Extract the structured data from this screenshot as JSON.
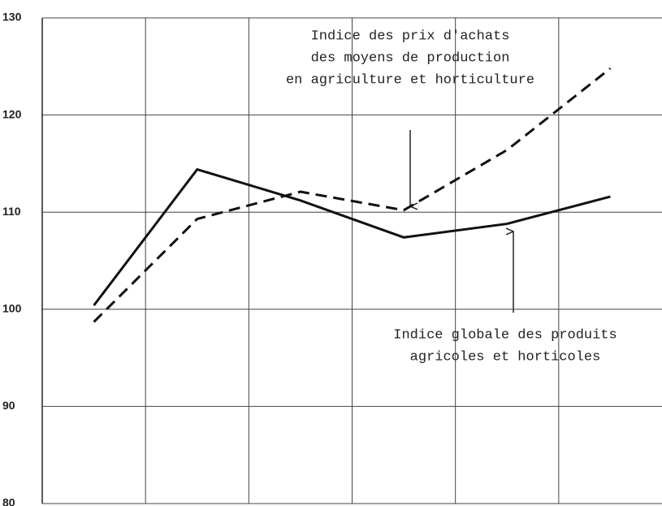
{
  "chart_data": {
    "type": "line",
    "categories": [
      null,
      null,
      null,
      null,
      null,
      null
    ],
    "series": [
      {
        "color": "#111111",
        "linestyle": "solid",
        "values": [
          100.4,
          114.4,
          111.2,
          107.4,
          108.8,
          111.6
        ]
      },
      {
        "color": "#111111",
        "linestyle": "dashed",
        "values": [
          98.7,
          109.3,
          112.1,
          110.2,
          116.4,
          124.8
        ]
      }
    ],
    "ylim": [
      80,
      130
    ],
    "yticks": [
      80,
      90,
      100,
      110,
      120,
      130
    ],
    "grid": true,
    "annotations": [
      {
        "lines": [
          "Indice des prix d'achats",
          "des moyens de production",
          "en agriculture et horticulture"
        ]
      },
      {
        "lines": [
          "Indice globale des produits",
          "agricoles et horticoles"
        ]
      }
    ]
  }
}
